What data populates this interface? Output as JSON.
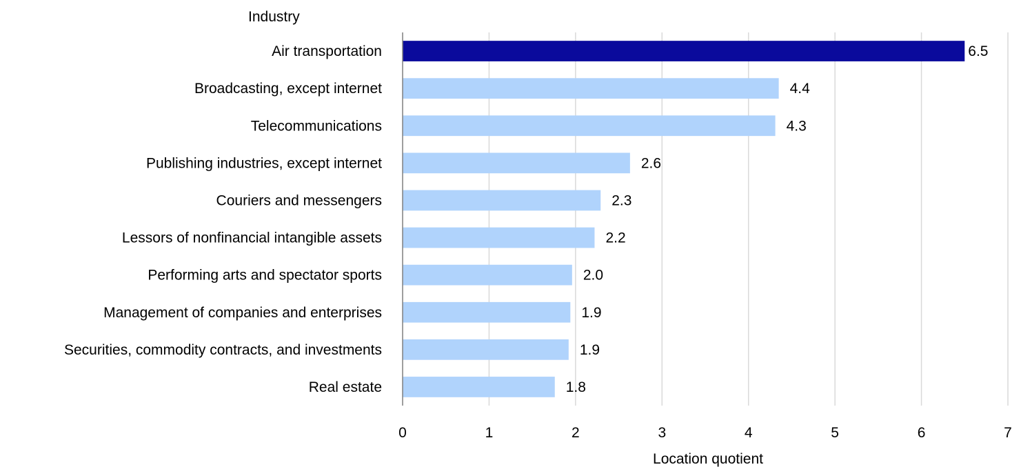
{
  "chart_data": {
    "type": "bar",
    "orientation": "horizontal",
    "ylabel": "Industry",
    "xlabel": "Location quotient",
    "xlim": [
      0,
      7
    ],
    "xticks": [
      "0",
      "1",
      "2",
      "3",
      "4",
      "5",
      "6",
      "7"
    ],
    "grid": true,
    "categories": [
      "Air transportation",
      "Broadcasting, except internet",
      "Telecommunications",
      "Publishing industries, except internet",
      "Couriers and messengers",
      "Lessors of nonfinancial intangible assets",
      "Performing arts and spectator sports",
      "Management of companies and enterprises",
      "Securities, commodity contracts, and investments",
      "Real estate"
    ],
    "values": [
      6.5,
      4.35,
      4.31,
      2.63,
      2.29,
      2.22,
      1.96,
      1.94,
      1.92,
      1.76
    ],
    "data_labels": [
      "6.5",
      "4.4",
      "4.3",
      "2.6",
      "2.3",
      "2.2",
      "2.0",
      "1.9",
      "1.9",
      "1.8"
    ],
    "highlight_color": "#0a0a9c",
    "bar_color": "#b0d3fc",
    "highlight_index": 0
  }
}
